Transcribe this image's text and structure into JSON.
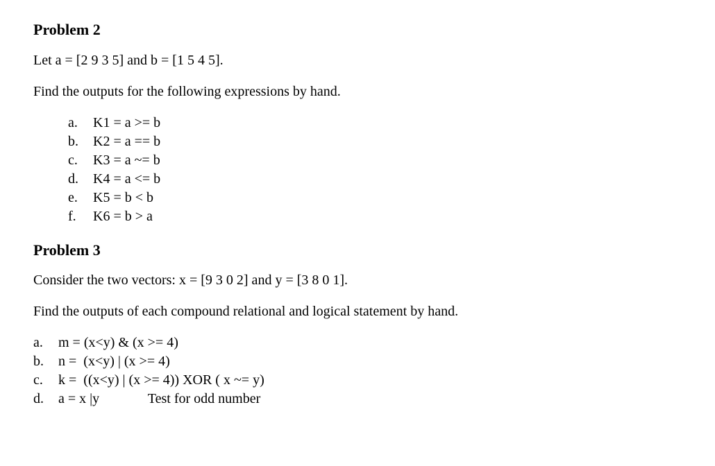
{
  "problem2": {
    "title": "Problem 2",
    "intro": "Let a = [2 9 3 5] and b = [1 5 4 5].",
    "instruction": "Find the outputs for the following expressions by hand.",
    "items": [
      {
        "marker": "a.",
        "text": "K1 = a >= b"
      },
      {
        "marker": "b.",
        "text": "K2 = a == b"
      },
      {
        "marker": "c.",
        "text": "K3 = a ~= b"
      },
      {
        "marker": "d.",
        "text": "K4 = a <= b"
      },
      {
        "marker": "e.",
        "text": "K5 = b < b"
      },
      {
        "marker": "f.",
        "text": "K6 = b > a"
      }
    ]
  },
  "problem3": {
    "title": "Problem 3",
    "intro": "Consider the two vectors: x = [9 3 0 2] and y = [3 8 0 1].",
    "instruction": "Find the outputs of each compound relational and logical statement by hand.",
    "items": [
      {
        "marker": "a.",
        "text": "m = (x<y) & (x >= 4)"
      },
      {
        "marker": "b.",
        "text": "n =  (x<y) | (x >= 4)"
      },
      {
        "marker": "c.",
        "text": "k =  ((x<y) | (x >= 4)) XOR ( x ~= y)"
      },
      {
        "marker": "d.",
        "text": "a = x |y              Test for odd number"
      }
    ]
  }
}
